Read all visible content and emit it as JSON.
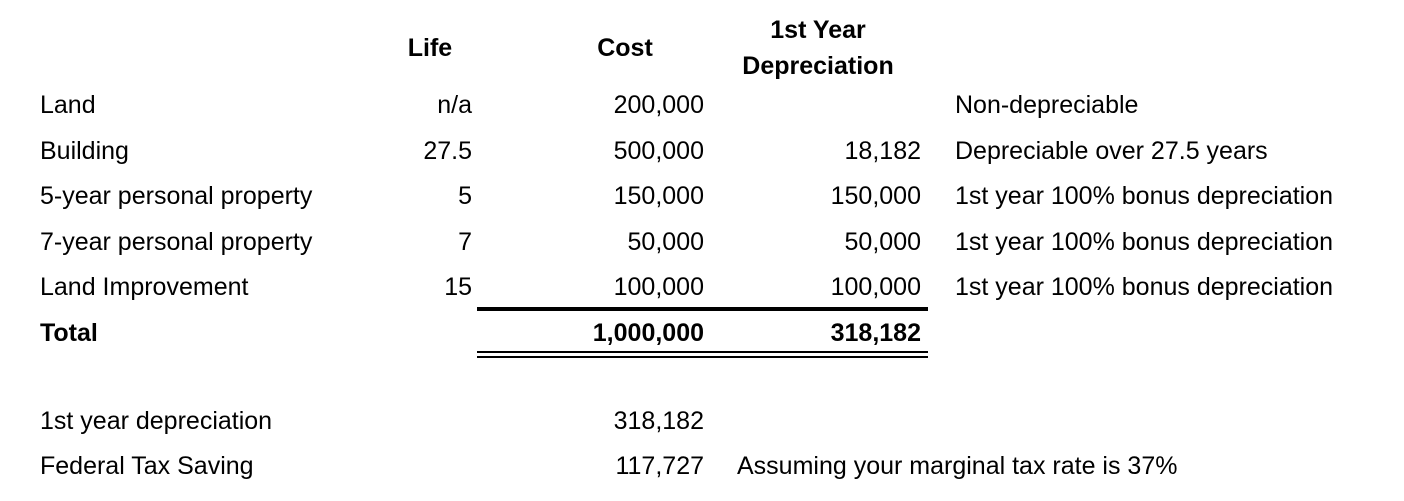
{
  "headers": {
    "life": "Life",
    "cost": "Cost",
    "first_year_line1": "1st Year",
    "first_year_line2": "Depreciation"
  },
  "rows": [
    {
      "label": "Land",
      "life": "n/a",
      "cost": "200,000",
      "depreciation": "",
      "note": "Non-depreciable"
    },
    {
      "label": "Building",
      "life": "27.5",
      "cost": "500,000",
      "depreciation": "18,182",
      "note": "Depreciable over 27.5 years"
    },
    {
      "label": "5-year personal property",
      "life": "5",
      "cost": "150,000",
      "depreciation": "150,000",
      "note": "1st year 100% bonus depreciation"
    },
    {
      "label": "7-year personal property",
      "life": "7",
      "cost": "50,000",
      "depreciation": "50,000",
      "note": "1st year 100% bonus depreciation"
    },
    {
      "label": "Land Improvement",
      "life": "15",
      "cost": "100,000",
      "depreciation": "100,000",
      "note": "1st year 100% bonus depreciation"
    }
  ],
  "total": {
    "label": "Total",
    "cost": "1,000,000",
    "depreciation": "318,182"
  },
  "summary": {
    "depreciation_label": "1st year depreciation",
    "depreciation_value": "318,182",
    "tax_label": "Federal Tax Saving",
    "tax_value": "117,727",
    "tax_note": "Assuming your marginal tax rate is 37%"
  }
}
